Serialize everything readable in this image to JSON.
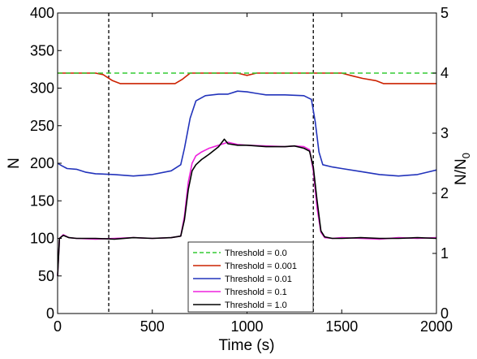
{
  "chart_data": {
    "type": "line",
    "title": "",
    "xlabel": "Time (s)",
    "ylabel": "N",
    "y2label": "N/N",
    "y2label_sub": "0",
    "xlim": [
      0,
      2000
    ],
    "ylim": [
      0,
      400
    ],
    "y2lim": [
      0,
      5
    ],
    "xticks": [
      0,
      500,
      1000,
      1500,
      2000
    ],
    "yticks": [
      0,
      50,
      100,
      150,
      200,
      250,
      300,
      350,
      400
    ],
    "y2ticks": [
      0,
      1,
      2,
      3,
      4,
      5
    ],
    "grid": false,
    "legend_position": "bottom-center",
    "vlines": [
      270,
      1350
    ],
    "series": [
      {
        "name": "Threshold = 0.0",
        "color": "#33cc33",
        "style": "dashed",
        "x": [
          0,
          2000
        ],
        "y": [
          320,
          320
        ]
      },
      {
        "name": "Threshold = 0.001",
        "color": "#cc2200",
        "style": "solid",
        "x": [
          0,
          200,
          240,
          290,
          330,
          620,
          660,
          700,
          950,
          1000,
          1050,
          1500,
          1560,
          1610,
          1680,
          1720,
          2000
        ],
        "y": [
          320,
          320,
          318,
          310,
          306,
          306,
          312,
          320,
          320,
          317,
          320,
          320,
          316,
          313,
          310,
          306,
          306
        ]
      },
      {
        "name": "Threshold = 0.01",
        "color": "#2233bb",
        "style": "solid",
        "x": [
          0,
          20,
          50,
          100,
          150,
          200,
          300,
          400,
          500,
          600,
          650,
          670,
          700,
          730,
          780,
          850,
          900,
          950,
          1000,
          1050,
          1100,
          1200,
          1300,
          1340,
          1360,
          1380,
          1400,
          1450,
          1500,
          1600,
          1700,
          1800,
          1900,
          1950,
          2000
        ],
        "y": [
          200,
          197,
          193,
          192,
          188,
          186,
          185,
          183,
          185,
          190,
          198,
          220,
          260,
          283,
          290,
          292,
          292,
          296,
          295,
          293,
          291,
          291,
          290,
          285,
          255,
          215,
          198,
          195,
          193,
          189,
          185,
          183,
          185,
          188,
          191
        ]
      },
      {
        "name": "Threshold = 0.1",
        "color": "#ee22dd",
        "style": "solid",
        "x": [
          0,
          10,
          30,
          60,
          100,
          200,
          300,
          400,
          500,
          600,
          650,
          670,
          690,
          710,
          730,
          760,
          800,
          850,
          900,
          950,
          1000,
          1100,
          1200,
          1250,
          1300,
          1330,
          1350,
          1370,
          1390,
          1410,
          1450,
          1500,
          1600,
          1700,
          1800,
          1900,
          2000
        ],
        "y": [
          50,
          100,
          105,
          101,
          100,
          99,
          100,
          101,
          100,
          101,
          103,
          130,
          175,
          200,
          210,
          215,
          220,
          224,
          228,
          225,
          224,
          223,
          222,
          223,
          222,
          218,
          190,
          140,
          108,
          101,
          100,
          101,
          100,
          99,
          101,
          100,
          101
        ]
      },
      {
        "name": "Threshold = 1.0",
        "color": "#000000",
        "style": "solid",
        "x": [
          0,
          10,
          30,
          60,
          100,
          200,
          300,
          400,
          500,
          600,
          650,
          670,
          690,
          710,
          730,
          760,
          800,
          850,
          880,
          900,
          950,
          1000,
          1100,
          1200,
          1250,
          1300,
          1330,
          1350,
          1370,
          1390,
          1410,
          1450,
          1500,
          1600,
          1700,
          1800,
          1900,
          2000
        ],
        "y": [
          50,
          100,
          104,
          101,
          100,
          100,
          99,
          101,
          100,
          101,
          103,
          125,
          165,
          190,
          198,
          205,
          212,
          222,
          232,
          226,
          224,
          224,
          222,
          222,
          223,
          220,
          216,
          195,
          150,
          110,
          102,
          100,
          100,
          101,
          100,
          100,
          101,
          100
        ]
      }
    ]
  }
}
